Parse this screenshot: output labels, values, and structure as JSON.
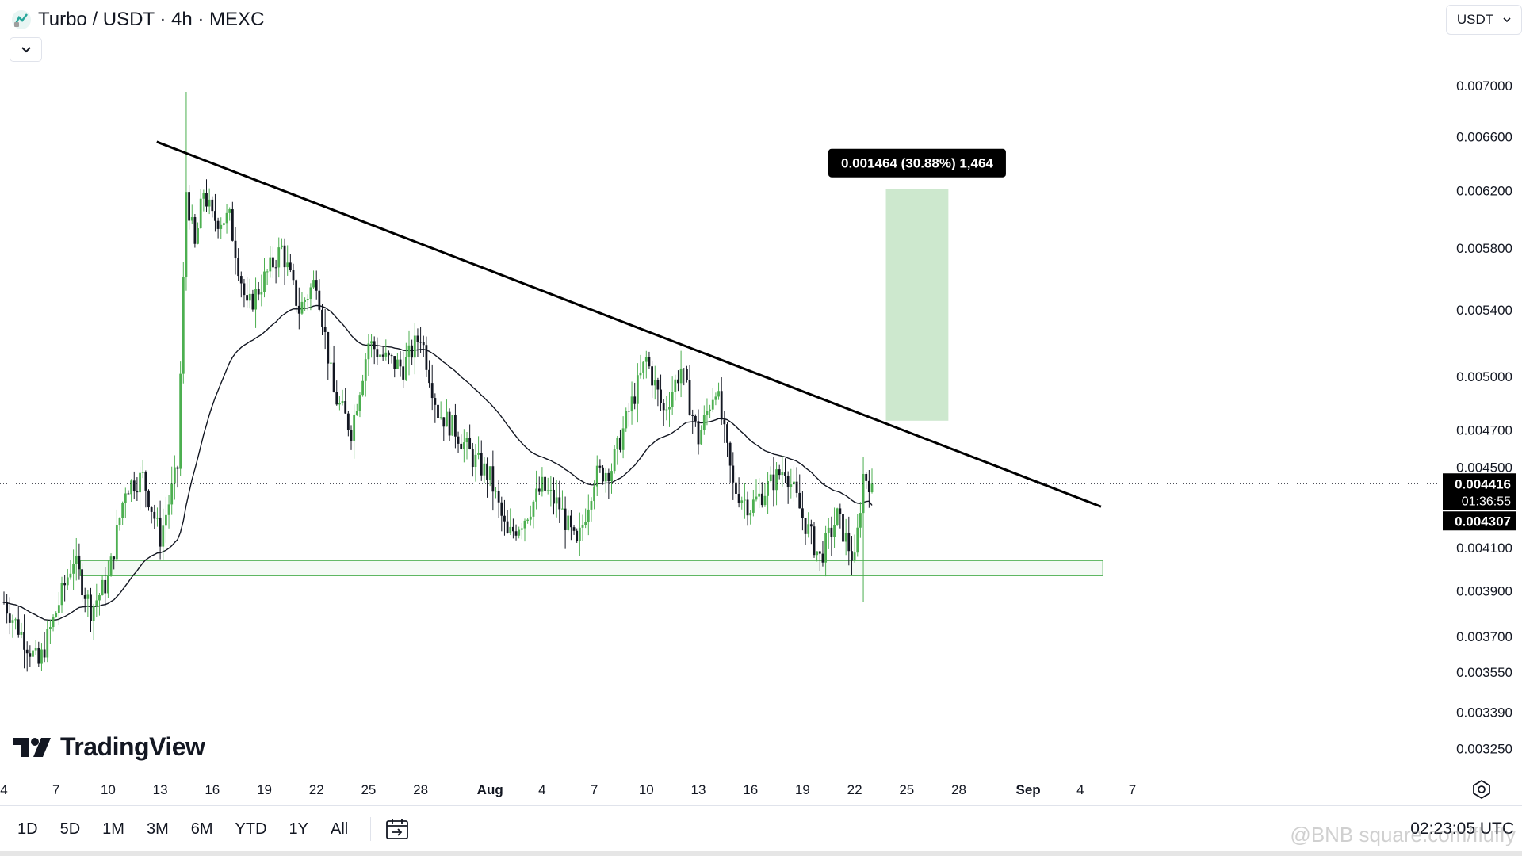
{
  "header": {
    "symbol": "Turbo",
    "quote": "USDT",
    "interval": "4h",
    "exchange": "MEXC",
    "title": "Turbo / USDT · 4h · MEXC"
  },
  "currency_selector": {
    "label": "USDT"
  },
  "branding": {
    "logo_text": "TradingView"
  },
  "bottom_bar": {
    "ranges": [
      "1D",
      "5D",
      "1M",
      "3M",
      "6M",
      "YTD",
      "1Y",
      "All"
    ],
    "clock": "02:23:05 UTC"
  },
  "watermark": "@BNB square.com/fluffy",
  "price_labels": {
    "current_price": "0.004416",
    "countdown": "01:36:55",
    "ma_value": "0.004307"
  },
  "measure_label": "0.001464 (30.88%) 1,464",
  "colors": {
    "up": "#4caf50",
    "down": "#131722",
    "ma_line": "#131722",
    "trendline": "#000000",
    "support_box": "#4caf50",
    "target_zone": "#c8e6c9",
    "price_tag_bg": "#000000"
  },
  "chart_data": {
    "type": "candlestick",
    "pair": "Turbo/USDT",
    "timeframe": "4h",
    "y_axis": {
      "scale": "log",
      "ticks": [
        "0.007000",
        "0.006600",
        "0.006200",
        "0.005800",
        "0.005400",
        "0.005000",
        "0.004700",
        "0.004500",
        "0.004100",
        "0.003900",
        "0.003700",
        "0.003550",
        "0.003390",
        "0.003250"
      ],
      "range": [
        0.00316,
        0.00735
      ]
    },
    "x_axis": {
      "ticks": [
        "4",
        "7",
        "10",
        "13",
        "16",
        "19",
        "22",
        "25",
        "28",
        "Aug",
        "4",
        "7",
        "10",
        "13",
        "16",
        "19",
        "22",
        "25",
        "28",
        "Sep",
        "4",
        "7"
      ]
    },
    "anchors": [
      {
        "date": "Jul 04",
        "price": 0.00385
      },
      {
        "date": "Jul 06",
        "price": 0.00358
      },
      {
        "date": "Jul 08",
        "price": 0.00405
      },
      {
        "date": "Jul 09",
        "price": 0.00382
      },
      {
        "date": "Jul 10",
        "price": 0.00395
      },
      {
        "date": "Jul 11",
        "price": 0.0044
      },
      {
        "date": "Jul 12",
        "price": 0.00445
      },
      {
        "date": "Jul 13",
        "price": 0.00415
      },
      {
        "date": "Jul 14",
        "price": 0.0045
      },
      {
        "date": "Jul 14.5",
        "price": 0.0062
      },
      {
        "date": "Jul 15",
        "price": 0.0058
      },
      {
        "date": "Jul 15.5",
        "price": 0.0062
      },
      {
        "date": "Jul 16",
        "price": 0.006
      },
      {
        "date": "Jul 17",
        "price": 0.006
      },
      {
        "date": "Jul 18",
        "price": 0.0054
      },
      {
        "date": "Jul 19",
        "price": 0.0056
      },
      {
        "date": "Jul 20",
        "price": 0.0058
      },
      {
        "date": "Jul 21",
        "price": 0.0054
      },
      {
        "date": "Jul 22",
        "price": 0.0056
      },
      {
        "date": "Jul 23",
        "price": 0.0049
      },
      {
        "date": "Jul 24",
        "price": 0.0047
      },
      {
        "date": "Jul 25",
        "price": 0.0052
      },
      {
        "date": "Jul 26",
        "price": 0.0051
      },
      {
        "date": "Jul 27",
        "price": 0.00505
      },
      {
        "date": "Jul 28",
        "price": 0.00525
      },
      {
        "date": "Jul 29",
        "price": 0.0048
      },
      {
        "date": "Jul 30",
        "price": 0.0047
      },
      {
        "date": "Jul 31",
        "price": 0.00455
      },
      {
        "date": "Aug 01",
        "price": 0.00445
      },
      {
        "date": "Aug 02",
        "price": 0.00415
      },
      {
        "date": "Aug 03",
        "price": 0.00425
      },
      {
        "date": "Aug 04",
        "price": 0.0044
      },
      {
        "date": "Aug 05",
        "price": 0.0043
      },
      {
        "date": "Aug 06",
        "price": 0.0041
      },
      {
        "date": "Aug 07",
        "price": 0.00445
      },
      {
        "date": "Aug 08",
        "price": 0.0045
      },
      {
        "date": "Aug 09",
        "price": 0.0048
      },
      {
        "date": "Aug 10",
        "price": 0.0051
      },
      {
        "date": "Aug 11",
        "price": 0.0048
      },
      {
        "date": "Aug 12",
        "price": 0.00505
      },
      {
        "date": "Aug 13",
        "price": 0.00465
      },
      {
        "date": "Aug 14",
        "price": 0.00495
      },
      {
        "date": "Aug 15",
        "price": 0.0044
      },
      {
        "date": "Aug 16",
        "price": 0.0043
      },
      {
        "date": "Aug 17",
        "price": 0.0044
      },
      {
        "date": "Aug 18",
        "price": 0.0045
      },
      {
        "date": "Aug 19",
        "price": 0.00425
      },
      {
        "date": "Aug 20",
        "price": 0.00405
      },
      {
        "date": "Aug 21",
        "price": 0.00425
      },
      {
        "date": "Aug 22",
        "price": 0.00403
      },
      {
        "date": "Aug 22.5",
        "price": 0.00446
      },
      {
        "date": "Aug 23",
        "price": 0.00442
      }
    ],
    "current_price": 0.004416,
    "moving_average_last": 0.004307,
    "trendline": {
      "start": {
        "date": "Jul 12.8",
        "price": 0.00656
      },
      "end": {
        "date": "Sep 05.2",
        "price": 0.0043
      }
    },
    "support_zone": {
      "from_date": "Jul 08.4",
      "to_date": "Sep 05.3",
      "low": 0.00397,
      "high": 0.00404
    },
    "target_zone": {
      "from_date": "Aug 23.8",
      "to_date": "Aug 27.4",
      "low": 0.00475,
      "high": 0.00621
    },
    "measure": {
      "change": 0.001464,
      "percent": 30.88,
      "ticks": 1464
    }
  }
}
